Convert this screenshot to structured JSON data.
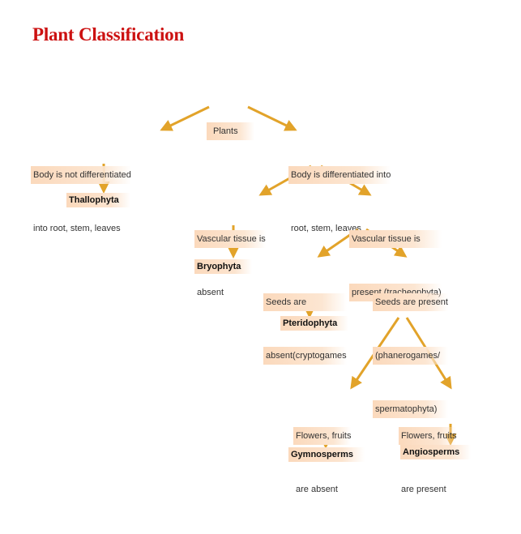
{
  "title": "Plant Classification",
  "nodes": {
    "plants": "Plants",
    "not_differentiated": [
      "Body is not differentiated",
      "into root, stem, leaves"
    ],
    "differentiated": [
      "Body is differentiated into",
      "root, stem, leaves"
    ],
    "vascular_absent": [
      "Vascular tissue is",
      "absent"
    ],
    "vascular_present": [
      "Vascular tissue is",
      "present (tracheophyta)"
    ],
    "seeds_absent": [
      "Seeds are",
      "absent(cryptogames"
    ],
    "seeds_present": [
      "Seeds are present",
      "(phanerogames/",
      "spermatophyta)"
    ],
    "flowers_absent": [
      "Flowers, fruits",
      "are absent"
    ],
    "flowers_present": [
      "Flowers, fruits",
      "are present"
    ]
  },
  "leaves": {
    "thallophyta": "Thallophyta",
    "bryophyta": "Bryophyta",
    "pteridophyta": "Pteridophyta",
    "gymnosperms": "Gymnosperms",
    "angiosperms": "Angiosperms"
  },
  "colors": {
    "title": "#cc1111",
    "arrow": "#e2a32a",
    "node_fill": "#fbd9bc"
  }
}
